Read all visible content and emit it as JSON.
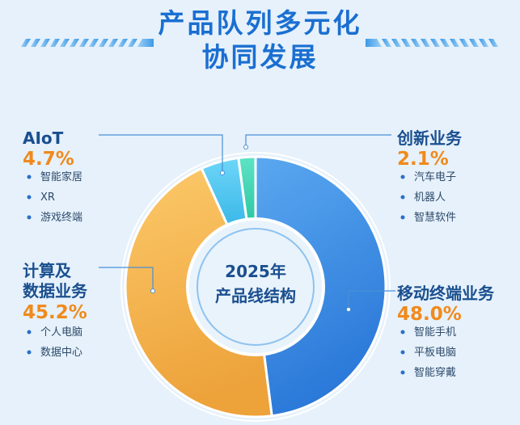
{
  "header": {
    "title_line1": "产品队列多元化",
    "title_line2": "协同发展"
  },
  "colors": {
    "title": "#1a6fd1",
    "accent_orange": "#f08a1c",
    "label_blue": "#1a4f8f",
    "background": "#e6f1fb"
  },
  "chart_data": {
    "type": "pie",
    "title": "2025年产品线结构",
    "center_label": [
      "2025年",
      "产品线结构"
    ],
    "unit": "%",
    "slices": [
      {
        "name": "移动终端业务",
        "value": 48.0,
        "label": "48.0%",
        "color": "#3f8fe6",
        "sub_items": [
          "智能手机",
          "平板电脑",
          "智能穿戴"
        ]
      },
      {
        "name": "计算及数据业务",
        "name_lines": [
          "计算及",
          "数据业务"
        ],
        "value": 45.2,
        "label": "45.2%",
        "color": "#f5b54a",
        "sub_items": [
          "个人电脑",
          "数据中心"
        ]
      },
      {
        "name": "AIoT",
        "value": 4.7,
        "label": "4.7%",
        "color": "#4bc3ee",
        "sub_items": [
          "智能家居",
          "XR",
          "游戏终端"
        ]
      },
      {
        "name": "创新业务",
        "value": 2.1,
        "label": "2.1%",
        "color": "#3ed6b3",
        "sub_items": [
          "汽车电子",
          "机器人",
          "智慧软件"
        ]
      }
    ]
  }
}
